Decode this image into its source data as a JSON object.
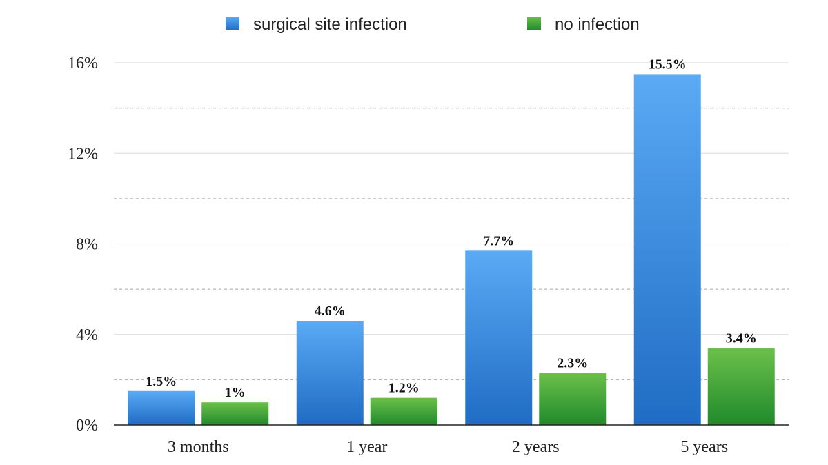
{
  "chart_data": {
    "type": "bar",
    "categories": [
      "3 months",
      "1 year",
      "2 years",
      "5 years"
    ],
    "series": [
      {
        "name": "surgical site infection",
        "values": [
          1.5,
          4.6,
          7.7,
          15.5
        ],
        "labels": [
          "1.5%",
          "4.6%",
          "7.7%",
          "15.5%"
        ],
        "color": "#3d8fe0"
      },
      {
        "name": "no infection",
        "values": [
          1,
          1.2,
          2.3,
          3.4
        ],
        "labels": [
          "1%",
          "1.2%",
          "2.3%",
          "3.4%"
        ],
        "color": "#3fa83a"
      }
    ],
    "yticks": [
      0,
      4,
      8,
      12,
      16
    ],
    "ytick_labels": [
      "0%",
      "4%",
      "8%",
      "12%",
      "16%"
    ],
    "ylim": [
      0,
      16
    ],
    "grid": true,
    "legend_position": "top-center"
  }
}
